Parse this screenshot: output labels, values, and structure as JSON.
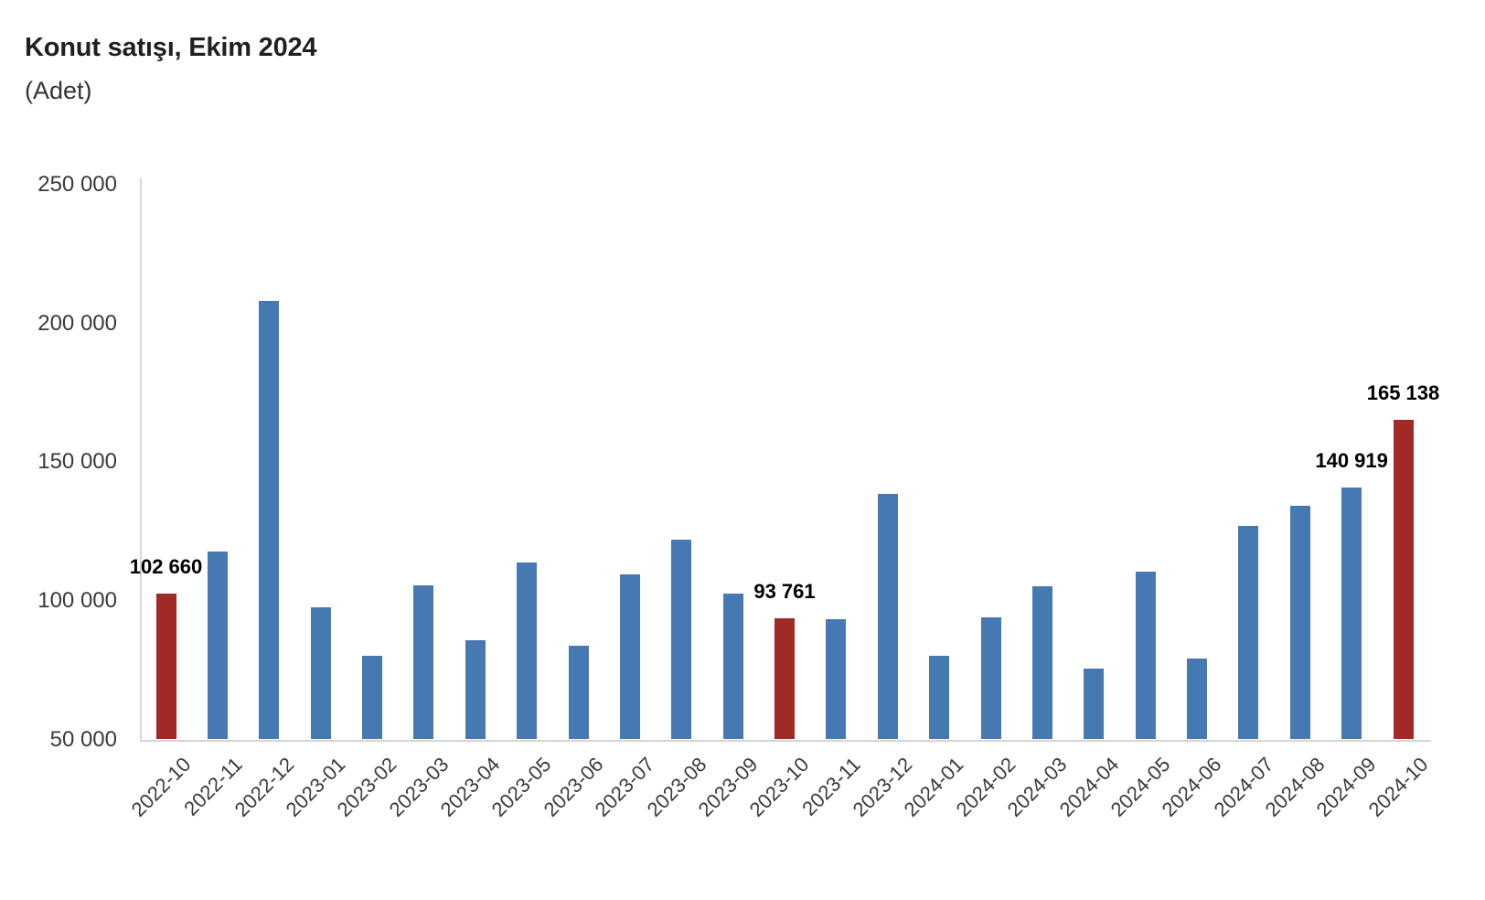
{
  "header": {
    "title": "Konut satışı, Ekim 2024",
    "subtitle": "(Adet)"
  },
  "chart_data": {
    "type": "bar",
    "title": "Konut satışı, Ekim 2024",
    "subtitle": "(Adet)",
    "xlabel": "",
    "ylabel": "",
    "ylim": [
      50000,
      250000
    ],
    "ytick_interval": 50000,
    "ytick_labels": [
      "50 000",
      "100 000",
      "150 000",
      "200 000",
      "250 000"
    ],
    "grid": false,
    "legend": "none",
    "colors": {
      "bar": "#4679B2",
      "highlight": "#A02A25",
      "axis": "#D6D6D8",
      "tick_text": "#3A3A3A",
      "data_label_text": "#000000",
      "title_text": "#1D2126"
    },
    "categories": [
      "2022-10",
      "2022-11",
      "2022-12",
      "2023-01",
      "2023-02",
      "2023-03",
      "2023-04",
      "2023-05",
      "2023-06",
      "2023-07",
      "2023-08",
      "2023-09",
      "2023-10",
      "2023-11",
      "2023-12",
      "2024-01",
      "2024-02",
      "2024-03",
      "2024-04",
      "2024-05",
      "2024-06",
      "2024-07",
      "2024-08",
      "2024-09",
      "2024-10"
    ],
    "values": [
      102660,
      117806,
      207963,
      97708,
      80031,
      105476,
      85652,
      113812,
      83636,
      109548,
      122091,
      102656,
      93761,
      93514,
      138577,
      80308,
      93902,
      105394,
      75569,
      110588,
      79313,
      127088,
      134155,
      140919,
      165138
    ],
    "highlighted_categories": [
      "2022-10",
      "2023-10",
      "2024-10"
    ],
    "data_labels": [
      {
        "category": "2022-10",
        "text": "102 660"
      },
      {
        "category": "2023-10",
        "text": "93 761"
      },
      {
        "category": "2024-09",
        "text": "140 919"
      },
      {
        "category": "2024-10",
        "text": "165 138"
      }
    ]
  }
}
